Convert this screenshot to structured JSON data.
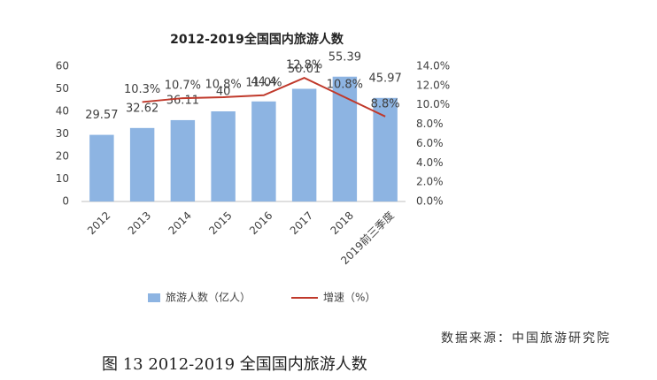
{
  "chart_data": {
    "type": "bar",
    "title": "2012-2019全国国内旅游人数",
    "categories": [
      "2012",
      "2013",
      "2014",
      "2015",
      "2016",
      "2017",
      "2018",
      "2019前三季度"
    ],
    "series": [
      {
        "name": "旅游人数（亿人）",
        "type": "bar",
        "color": "#8db4e2",
        "values": [
          29.57,
          32.62,
          36.11,
          40,
          44.4,
          50.01,
          55.39,
          45.97
        ]
      },
      {
        "name": "增速（%）",
        "type": "line",
        "axis": "y2",
        "color": "#c0392b",
        "values": [
          null,
          10.3,
          10.7,
          10.8,
          11.0,
          12.8,
          10.8,
          8.8
        ],
        "value_labels": [
          null,
          "10.3%",
          "10.7%",
          "10.8%",
          "11.0%",
          "12.8%",
          "10.8%",
          "8.8%"
        ]
      }
    ],
    "ylim": [
      0,
      60
    ],
    "yticks": [
      0,
      10,
      20,
      30,
      40,
      50,
      60
    ],
    "y2lim": [
      0,
      14
    ],
    "y2ticks": [
      {
        "value": 0,
        "label": "0.0%"
      },
      {
        "value": 2,
        "label": "2.0%"
      },
      {
        "value": 4,
        "label": "4.0%"
      },
      {
        "value": 6,
        "label": "6.0%"
      },
      {
        "value": 8,
        "label": "8.0%"
      },
      {
        "value": 10,
        "label": "10.0%"
      },
      {
        "value": 12,
        "label": "12.0%"
      },
      {
        "value": 14,
        "label": "14.0%"
      }
    ],
    "legend": "bottom"
  },
  "source": "数据来源：中国旅游研究院",
  "caption": "图 13 2012-2019 全国国内旅游人数"
}
